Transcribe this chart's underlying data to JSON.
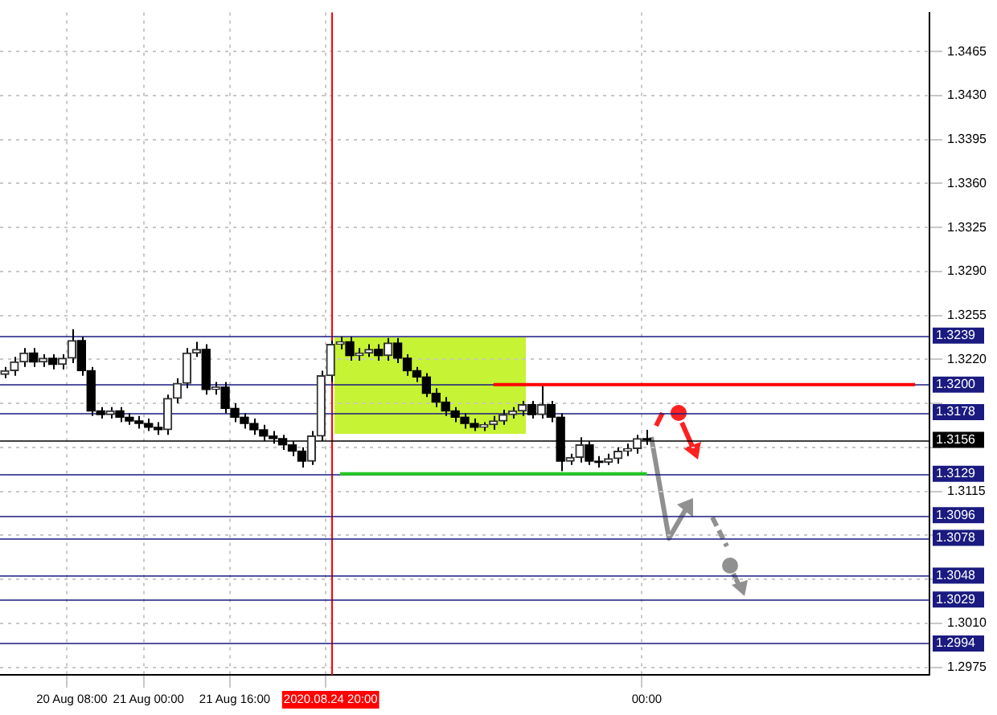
{
  "chart_data": {
    "type": "candlestick",
    "categories": [
      null,
      null,
      null,
      null,
      null,
      null,
      null,
      "20 Aug 08:00",
      null,
      null,
      null,
      null,
      null,
      null,
      null,
      "21 Aug 00:00",
      null,
      null,
      null,
      null,
      null,
      null,
      null,
      null,
      "21 Aug 16:00",
      null,
      null,
      null,
      null,
      null,
      null,
      null,
      null,
      null,
      "2020.08.24 20:00",
      null,
      null,
      null,
      null,
      null,
      null,
      null,
      null,
      null,
      null,
      null,
      null,
      null,
      null,
      null,
      null,
      null,
      null,
      null,
      null,
      null,
      null,
      null,
      null,
      null,
      null,
      null,
      null,
      null,
      null,
      null,
      null,
      "00:00",
      null,
      null,
      null,
      null,
      null,
      null,
      null,
      null,
      null,
      null,
      null,
      null,
      null,
      null,
      null,
      null,
      null,
      null,
      null,
      null,
      null,
      null,
      null,
      null,
      null,
      null,
      null,
      null,
      null
    ],
    "ohlc": [
      [
        1.3208,
        1.3214,
        1.3205,
        1.3211
      ],
      [
        1.3211,
        1.3222,
        1.3207,
        1.3218
      ],
      [
        1.3218,
        1.3229,
        1.3214,
        1.3225
      ],
      [
        1.3225,
        1.3229,
        1.3214,
        1.3218
      ],
      [
        1.3218,
        1.3224,
        1.3214,
        1.3221
      ],
      [
        1.3221,
        1.3224,
        1.3212,
        1.3216
      ],
      [
        1.3216,
        1.3224,
        1.3212,
        1.3221
      ],
      [
        1.3221,
        1.3244,
        1.3217,
        1.3235
      ],
      [
        1.3235,
        1.3238,
        1.3207,
        1.3211
      ],
      [
        1.3211,
        1.3214,
        1.3175,
        1.3179
      ],
      [
        1.3179,
        1.3182,
        1.3173,
        1.3176
      ],
      [
        1.3176,
        1.3182,
        1.3173,
        1.3179
      ],
      [
        1.3179,
        1.3182,
        1.317,
        1.3174
      ],
      [
        1.3174,
        1.3177,
        1.3168,
        1.3171
      ],
      [
        1.3171,
        1.3175,
        1.3165,
        1.3169
      ],
      [
        1.3169,
        1.3173,
        1.3163,
        1.3166
      ],
      [
        1.3166,
        1.317,
        1.316,
        1.3164
      ],
      [
        1.3164,
        1.3192,
        1.316,
        1.3189
      ],
      [
        1.3189,
        1.3205,
        1.3185,
        1.3201
      ],
      [
        1.3201,
        1.3229,
        1.3197,
        1.3225
      ],
      [
        1.3225,
        1.3234,
        1.3222,
        1.3228
      ],
      [
        1.3228,
        1.3232,
        1.3192,
        1.3196
      ],
      [
        1.3196,
        1.3202,
        1.3192,
        1.3198
      ],
      [
        1.3198,
        1.3202,
        1.3177,
        1.3181
      ],
      [
        1.3181,
        1.3185,
        1.317,
        1.3174
      ],
      [
        1.3174,
        1.3177,
        1.3165,
        1.3169
      ],
      [
        1.3169,
        1.3173,
        1.316,
        1.3164
      ],
      [
        1.3164,
        1.3168,
        1.3155,
        1.3159
      ],
      [
        1.3159,
        1.3163,
        1.3153,
        1.3157
      ],
      [
        1.3157,
        1.316,
        1.3148,
        1.3152
      ],
      [
        1.3152,
        1.3155,
        1.3143,
        1.3147
      ],
      [
        1.3147,
        1.315,
        1.3134,
        1.3139
      ],
      [
        1.3139,
        1.3163,
        1.3136,
        1.3159
      ],
      [
        1.3159,
        1.3211,
        1.3155,
        1.3207
      ],
      [
        1.3207,
        1.3235,
        1.3202,
        1.3232
      ],
      [
        1.3232,
        1.3238,
        1.3228,
        1.3234
      ],
      [
        1.3234,
        1.3238,
        1.3219,
        1.3223
      ],
      [
        1.3223,
        1.3229,
        1.3219,
        1.3225
      ],
      [
        1.3225,
        1.3232,
        1.3222,
        1.3228
      ],
      [
        1.3228,
        1.3232,
        1.3219,
        1.3223
      ],
      [
        1.3223,
        1.3237,
        1.3219,
        1.3233
      ],
      [
        1.3233,
        1.3237,
        1.3217,
        1.3221
      ],
      [
        1.3221,
        1.3224,
        1.3207,
        1.3211
      ],
      [
        1.3211,
        1.3214,
        1.3202,
        1.3206
      ],
      [
        1.3206,
        1.3209,
        1.319,
        1.3193
      ],
      [
        1.3193,
        1.3197,
        1.3182,
        1.3186
      ],
      [
        1.3186,
        1.319,
        1.3175,
        1.3179
      ],
      [
        1.3179,
        1.3182,
        1.317,
        1.3174
      ],
      [
        1.3174,
        1.3177,
        1.3165,
        1.3169
      ],
      [
        1.3169,
        1.3173,
        1.3163,
        1.3166
      ],
      [
        1.3166,
        1.317,
        1.3163,
        1.3168
      ],
      [
        1.3168,
        1.3175,
        1.3164,
        1.3171
      ],
      [
        1.3171,
        1.318,
        1.3168,
        1.3176
      ],
      [
        1.3176,
        1.3182,
        1.3173,
        1.3179
      ],
      [
        1.3179,
        1.3187,
        1.3175,
        1.3184
      ],
      [
        1.3184,
        1.3187,
        1.3173,
        1.3176
      ],
      [
        1.3176,
        1.3201,
        1.3173,
        1.3184
      ],
      [
        1.3184,
        1.3187,
        1.317,
        1.3174
      ],
      [
        1.3174,
        1.3177,
        1.3131,
        1.3139
      ],
      [
        1.3139,
        1.3145,
        1.3136,
        1.3142
      ],
      [
        1.3142,
        1.3158,
        1.3138,
        1.3152
      ],
      [
        1.3152,
        1.3155,
        1.3136,
        1.3139
      ],
      [
        1.3139,
        1.3143,
        1.3134,
        1.3138
      ],
      [
        1.3138,
        1.3145,
        1.3136,
        1.3141
      ],
      [
        1.3141,
        1.315,
        1.3137,
        1.3147
      ],
      [
        1.3147,
        1.3153,
        1.3143,
        1.3149
      ],
      [
        1.3149,
        1.316,
        1.3145,
        1.3157
      ],
      [
        1.3157,
        1.3164,
        1.3152,
        1.3156
      ],
      null,
      null,
      null,
      null,
      null,
      null,
      null,
      null,
      null,
      null,
      null,
      null,
      null,
      null,
      null,
      null,
      null,
      null,
      null,
      null,
      null,
      null,
      null,
      null,
      null,
      null,
      null,
      null,
      null
    ],
    "series": [
      {
        "type": "line",
        "color": "#ff0000",
        "values": [
          null,
          null,
          null,
          null,
          null,
          null,
          null,
          null,
          null,
          null,
          null,
          null,
          null,
          null,
          null,
          null,
          null,
          null,
          null,
          null,
          null,
          null,
          null,
          null,
          null,
          null,
          null,
          null,
          null,
          null,
          null,
          null,
          null,
          null,
          null,
          null,
          null,
          null,
          null,
          null,
          null,
          null,
          null,
          null,
          null,
          null,
          null,
          null,
          null,
          null,
          null,
          1.32,
          1.32,
          1.32,
          1.32,
          1.32,
          1.32,
          1.32,
          1.32,
          1.32,
          1.32,
          1.32,
          1.32,
          1.32,
          1.32,
          1.32,
          1.32,
          1.32,
          1.32,
          1.32,
          1.32,
          1.32,
          1.32,
          1.32,
          1.32,
          1.32,
          1.32,
          1.32,
          1.32,
          1.32,
          1.32,
          1.32,
          1.32,
          1.32,
          1.32,
          1.32,
          1.32,
          1.32,
          1.32,
          1.32,
          1.32,
          1.32,
          1.32,
          1.32,
          1.32,
          1.32,
          null
        ]
      },
      {
        "type": "line",
        "color": "#22c822",
        "values": [
          null,
          null,
          null,
          null,
          null,
          null,
          null,
          null,
          null,
          null,
          null,
          null,
          null,
          null,
          null,
          null,
          null,
          null,
          null,
          null,
          null,
          null,
          null,
          null,
          null,
          null,
          null,
          null,
          null,
          null,
          null,
          null,
          null,
          null,
          null,
          1.3129,
          1.3129,
          1.3129,
          1.3129,
          1.3129,
          1.3129,
          1.3129,
          1.3129,
          1.3129,
          1.3129,
          1.3129,
          1.3129,
          1.3129,
          1.3129,
          1.3129,
          1.3129,
          1.3129,
          1.3129,
          1.3129,
          1.3129,
          1.3129,
          1.3129,
          1.3129,
          1.3129,
          1.3129,
          1.3129,
          1.3129,
          1.3129,
          1.3129,
          1.3129,
          1.3129,
          1.3129,
          1.3129,
          null,
          null,
          null,
          null,
          null,
          null,
          null,
          null,
          null,
          null,
          null,
          null,
          null,
          null,
          null,
          null,
          null,
          null,
          null,
          null,
          null,
          null,
          null,
          null,
          null,
          null,
          null,
          null,
          null
        ]
      }
    ],
    "ylim": [
      1.2969,
      1.3496
    ],
    "yticks": [
      1.2975,
      {
        "value": 1.301,
        "label": "1.3010"
      },
      {
        "value": 1.3045,
        "label": null
      },
      {
        "value": 1.308,
        "label": null
      },
      1.3115,
      {
        "value": 1.315,
        "label": null
      },
      {
        "value": 1.3185,
        "label": null
      },
      {
        "value": 1.322,
        "label": "1.3220"
      },
      1.3255,
      {
        "value": 1.329,
        "label": "1.3290"
      },
      1.3325,
      {
        "value": 1.336,
        "label": "1.3360"
      },
      1.3395,
      {
        "value": 1.343,
        "label": "1.3430"
      },
      1.3465
    ],
    "ref_lines": [
      {
        "axis": "x",
        "value": "2020.08.24 20:00",
        "color": "#ff0000"
      },
      {
        "axis": "y",
        "value": 1.3239,
        "label": "1.3239",
        "color": "#1a1a80"
      },
      {
        "axis": "y",
        "value": 1.32,
        "label": "1.3200",
        "color": "#1a1a80"
      },
      {
        "axis": "y",
        "value": 1.3178,
        "label": "1.3178",
        "color": "#1a1a80"
      },
      {
        "axis": "y",
        "value": 1.3156,
        "label": "1.3156",
        "color": "#000000"
      },
      {
        "axis": "y",
        "value": 1.3129,
        "label": "1.3129",
        "color": "#1a1a80"
      },
      {
        "axis": "y",
        "value": 1.3096,
        "label": "1.3096",
        "color": "#1a1a80"
      },
      {
        "axis": "y",
        "value": 1.3078,
        "label": "1.3078",
        "color": "#1a1a80"
      },
      {
        "axis": "y",
        "value": 1.3048,
        "label": "1.3048",
        "color": "#1a1a80"
      },
      {
        "axis": "y",
        "value": 1.3029,
        "label": "1.3029",
        "color": "#1a1a80"
      },
      {
        "axis": "y",
        "value": 1.2994,
        "label": "1.2994",
        "color": "#1a1a80"
      }
    ],
    "grid": true,
    "legend": false
  }
}
